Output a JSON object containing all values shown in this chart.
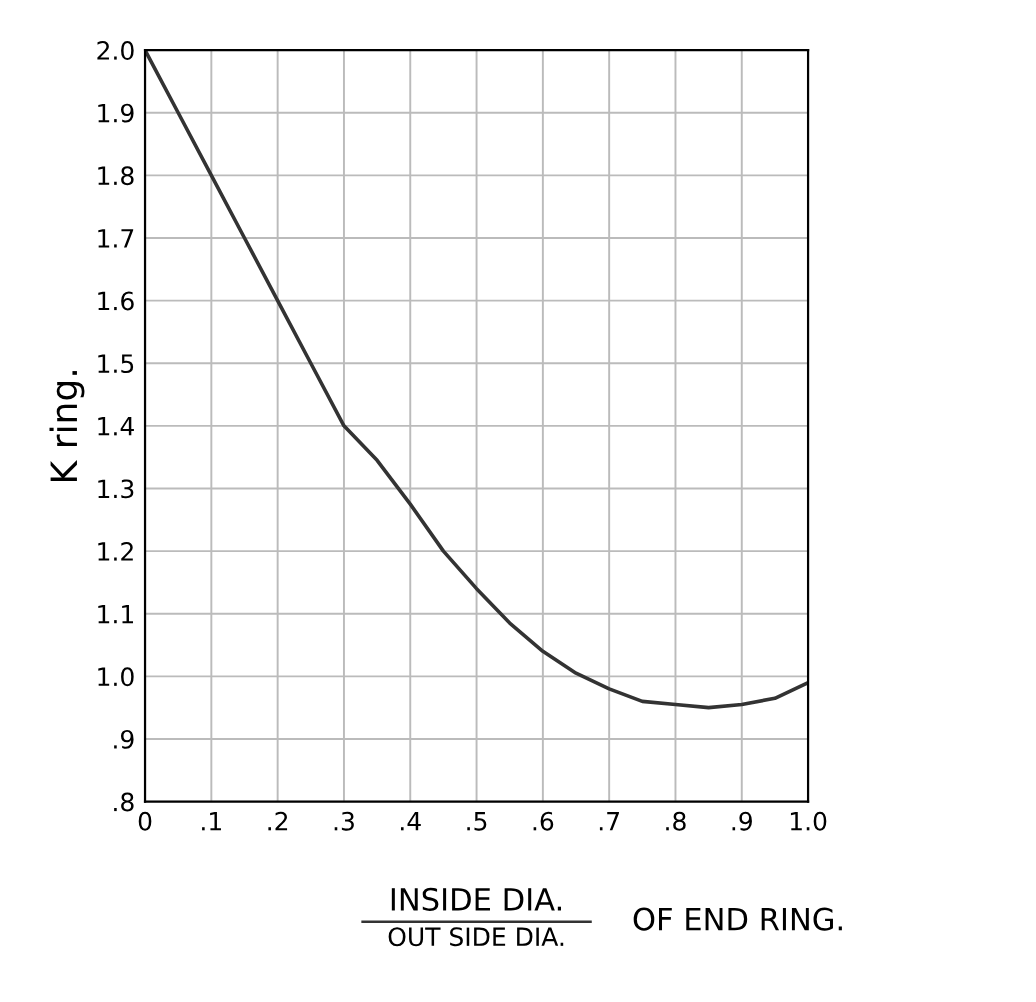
{
  "chart_data": {
    "type": "line",
    "xlabel": "INSIDE DIA.",
    "ylabel": "K ring.",
    "annotations": [
      "OUT SIDE DIA.",
      "OF END RING."
    ],
    "x": [
      0,
      0.05,
      0.1,
      0.15,
      0.2,
      0.25,
      0.3,
      0.35,
      0.4,
      0.45,
      0.5,
      0.55,
      0.6,
      0.65,
      0.7,
      0.75,
      0.8,
      0.85,
      0.9,
      0.95,
      1.0
    ],
    "series": [
      {
        "color": "#333333",
        "values": [
          2.0,
          1.9,
          1.8,
          1.7,
          1.6,
          1.5,
          1.4,
          1.345,
          1.275,
          1.2,
          1.14,
          1.085,
          1.04,
          1.005,
          0.98,
          0.96,
          0.955,
          0.95,
          0.955,
          0.965,
          0.99
        ]
      }
    ],
    "xlim": [
      0,
      1.0
    ],
    "ylim": [
      0.8,
      2.0
    ],
    "xticks": [
      {
        "value": 0,
        "label": "0"
      },
      {
        "value": 0.1,
        "label": ".1"
      },
      {
        "value": 0.2,
        "label": ".2"
      },
      {
        "value": 0.3,
        "label": ".3"
      },
      {
        "value": 0.4,
        "label": ".4"
      },
      {
        "value": 0.5,
        "label": ".5"
      },
      {
        "value": 0.6,
        "label": ".6"
      },
      {
        "value": 0.7,
        "label": ".7"
      },
      {
        "value": 0.8,
        "label": ".8"
      },
      {
        "value": 0.9,
        "label": ".9"
      },
      {
        "value": 1.0,
        "label": "1.0"
      }
    ],
    "yticks": [
      {
        "value": 0.8,
        "label": ".8"
      },
      {
        "value": 0.9,
        "label": ".9"
      },
      {
        "value": 1.0,
        "label": "1.0"
      },
      1.1,
      1.2,
      1.3,
      1.4,
      1.5,
      1.6,
      1.7,
      1.8,
      1.9,
      {
        "value": 2.0,
        "label": "2.0"
      }
    ],
    "grid": true,
    "marker": "none",
    "line_style": "solid"
  }
}
